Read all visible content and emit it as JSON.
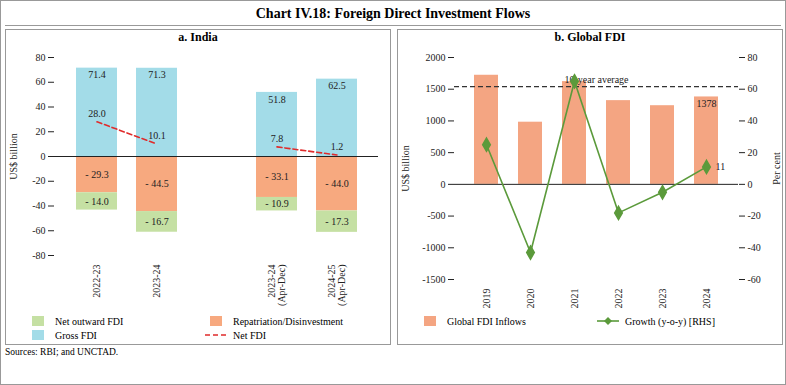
{
  "title": "Chart IV.18: Foreign Direct Investment Flows",
  "source": "Sources: RBI; and UNCTAD.",
  "chart_data": [
    {
      "type": "bar",
      "title": "a. India",
      "y_label": "US$ billion",
      "categories": [
        "2022-23",
        "2023-24",
        null,
        "2023-24\n(Apr-Dec)",
        "2024-25\n(Apr-Dec)"
      ],
      "ylim": [
        -80,
        80
      ],
      "yticks": [
        -80,
        -60,
        -40,
        -20,
        0,
        20,
        40,
        60,
        80
      ],
      "stacked": true,
      "data_labels": true,
      "legend": "bottom",
      "series": [
        {
          "name": "Net outward FDI",
          "type": "bar",
          "color": "#c5e0a3",
          "values": [
            -14.0,
            -16.7,
            null,
            -10.9,
            -17.3
          ],
          "value_labels": [
            "- 14.0",
            "- 16.7",
            null,
            "- 10.9",
            "- 17.3"
          ]
        },
        {
          "name": "Repatriation/Disinvestment",
          "type": "bar",
          "color": "#f7a97f",
          "values": [
            -29.3,
            -44.5,
            null,
            -33.1,
            -44.0
          ],
          "value_labels": [
            "- 29.3",
            "- 44.5",
            null,
            "- 33.1",
            "- 44.0"
          ]
        },
        {
          "name": "Gross FDI",
          "type": "bar",
          "color": "#a3dce8",
          "values": [
            71.4,
            71.3,
            null,
            51.8,
            62.5
          ],
          "value_labels": [
            "71.4",
            "71.3",
            null,
            "51.8",
            "62.5"
          ]
        },
        {
          "name": "Net FDI",
          "type": "line",
          "color": "#e02b2b",
          "line_style": "dashed",
          "values": [
            28.0,
            10.1,
            null,
            7.8,
            1.2
          ],
          "value_labels": [
            "28.0",
            "10.1",
            null,
            "7.8",
            "1.2"
          ]
        }
      ]
    },
    {
      "type": "bar",
      "title": "b. Global FDI",
      "y_label": "US$ billion",
      "y2_label": "Per cent",
      "categories": [
        "2019",
        "2020",
        "2021",
        "2022",
        "2023",
        "2024"
      ],
      "ylim": [
        -1500,
        2000
      ],
      "yticks": [
        -1500,
        -1000,
        -500,
        0,
        500,
        1000,
        1500,
        2000
      ],
      "y2lim": [
        -60,
        80
      ],
      "y2ticks": [
        -60,
        -40,
        -20,
        0,
        20,
        40,
        60,
        80
      ],
      "data_labels": true,
      "legend": "bottom",
      "reference_lines": [
        {
          "label": "10-year average",
          "value": 1540,
          "line_style": "dashed"
        }
      ],
      "series": [
        {
          "name": "Global FDI Inflows",
          "type": "bar",
          "color": "#f4a582",
          "values": [
            1720,
            980,
            1620,
            1320,
            1240,
            1378
          ],
          "value_labels": [
            null,
            null,
            null,
            null,
            null,
            "1378"
          ]
        },
        {
          "name": "Growth (y-o-y) [RHS]",
          "type": "line",
          "axis": "y2",
          "color": "#5b9a3b",
          "marker": "diamond",
          "values": [
            25,
            -43,
            65,
            -18,
            -5,
            11
          ],
          "value_labels": [
            null,
            null,
            null,
            null,
            null,
            "11"
          ]
        }
      ]
    }
  ]
}
